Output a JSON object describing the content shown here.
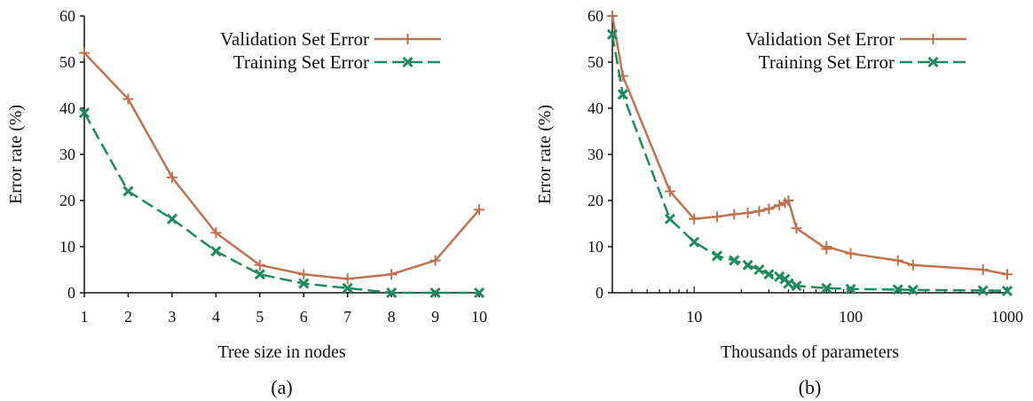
{
  "colors": {
    "validation": "#c0714f",
    "training": "#1f8a5f",
    "axis": "#111111"
  },
  "chart_data": [
    {
      "type": "line",
      "panel_label": "(a)",
      "xlabel": "Tree size in nodes",
      "ylabel": "Error rate (%)",
      "xscale": "linear",
      "xlim": [
        1,
        10
      ],
      "ylim": [
        0,
        60
      ],
      "xticks": [
        "1",
        "2",
        "3",
        "4",
        "5",
        "6",
        "7",
        "8",
        "9",
        "10"
      ],
      "yticks": [
        "0",
        "10",
        "20",
        "30",
        "40",
        "50",
        "60"
      ],
      "legend_position": "top-right",
      "series": [
        {
          "name": "Validation Set Error",
          "line": "solid",
          "marker": "plus",
          "x": [
            1,
            2,
            3,
            4,
            5,
            6,
            7,
            8,
            9,
            10
          ],
          "y": [
            52,
            42,
            25,
            13,
            6,
            4,
            3,
            4,
            7,
            18
          ]
        },
        {
          "name": "Training Set Error",
          "line": "dashed",
          "marker": "x",
          "x": [
            1,
            2,
            3,
            4,
            5,
            6,
            7,
            8,
            9,
            10
          ],
          "y": [
            39,
            22,
            16,
            9,
            4,
            2,
            1,
            0,
            0,
            0
          ]
        }
      ]
    },
    {
      "type": "line",
      "panel_label": "(b)",
      "xlabel": "Thousands of parameters",
      "ylabel": "Error rate (%)",
      "xscale": "log",
      "xlim": [
        3,
        1000
      ],
      "ylim": [
        0,
        60
      ],
      "xticks": [
        "10",
        "100",
        "1000"
      ],
      "yticks": [
        "0",
        "10",
        "20",
        "30",
        "40",
        "50",
        "60"
      ],
      "legend_position": "top-right",
      "series": [
        {
          "name": "Validation Set Error",
          "line": "solid",
          "marker": "plus",
          "x": [
            3,
            3.5,
            7,
            10,
            14,
            18,
            22,
            26,
            30,
            35,
            38,
            40,
            45,
            70,
            70,
            100,
            200,
            250,
            700,
            1000
          ],
          "y": [
            60,
            47,
            22,
            16,
            16.5,
            17,
            17.3,
            17.7,
            18.2,
            19,
            19.5,
            20,
            14,
            9.5,
            10,
            8.5,
            7,
            6,
            5,
            4
          ]
        },
        {
          "name": "Training Set Error",
          "line": "dashed",
          "marker": "x",
          "x": [
            3,
            3.5,
            7,
            10,
            14,
            18,
            22,
            26,
            30,
            35,
            38,
            40,
            45,
            70,
            100,
            200,
            250,
            700,
            1000
          ],
          "y": [
            56,
            43,
            16,
            11,
            8,
            7,
            6,
            5,
            4,
            3.5,
            3,
            2,
            1.5,
            1,
            0.8,
            0.7,
            0.6,
            0.5,
            0.4
          ]
        }
      ]
    }
  ]
}
